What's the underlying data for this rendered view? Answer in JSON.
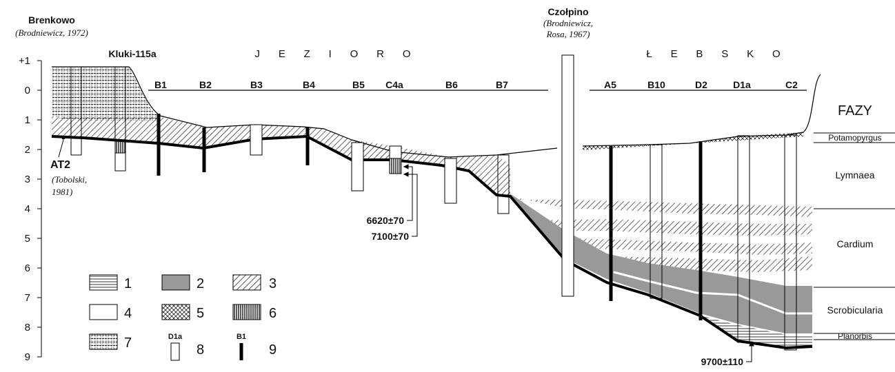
{
  "sites": {
    "brenkowo": {
      "name": "Brenkowo",
      "source": "(Brodniewicz, 1972)"
    },
    "kluki": "Kluki-115a",
    "czolpino": {
      "name": "Czołpino",
      "source_line1": "(Brodniewicz,",
      "source_line2": "Rosa, 1967)"
    }
  },
  "lakes": [
    "J     E     Z     I     O     R     O",
    "Ł     E     B     S     K     O"
  ],
  "depth_axis": [
    "+1",
    "0",
    "1",
    "2",
    "3",
    "4",
    "5",
    "6",
    "7",
    "8",
    "9"
  ],
  "boreholes": [
    "B1",
    "B2",
    "B3",
    "B4",
    "B5",
    "C4a",
    "B6",
    "B7",
    "A5",
    "B10",
    "D2",
    "D1a",
    "C2"
  ],
  "phases": {
    "title": "FAZY",
    "names": [
      "Potamopyrgus",
      "Lymnaea",
      "Cardium",
      "Scrobicularia",
      "Planorbis"
    ]
  },
  "at2": {
    "label": "AT2",
    "source_line1": "(Tobolski,",
    "source_line2": "1981)"
  },
  "dates": [
    "6620±70",
    "7100±70",
    "9700±110"
  ],
  "legend": {
    "numbers": [
      1,
      2,
      3,
      4,
      5,
      6,
      7,
      8,
      9
    ],
    "sample_core": "D1a",
    "sample_probe": "B1"
  }
}
